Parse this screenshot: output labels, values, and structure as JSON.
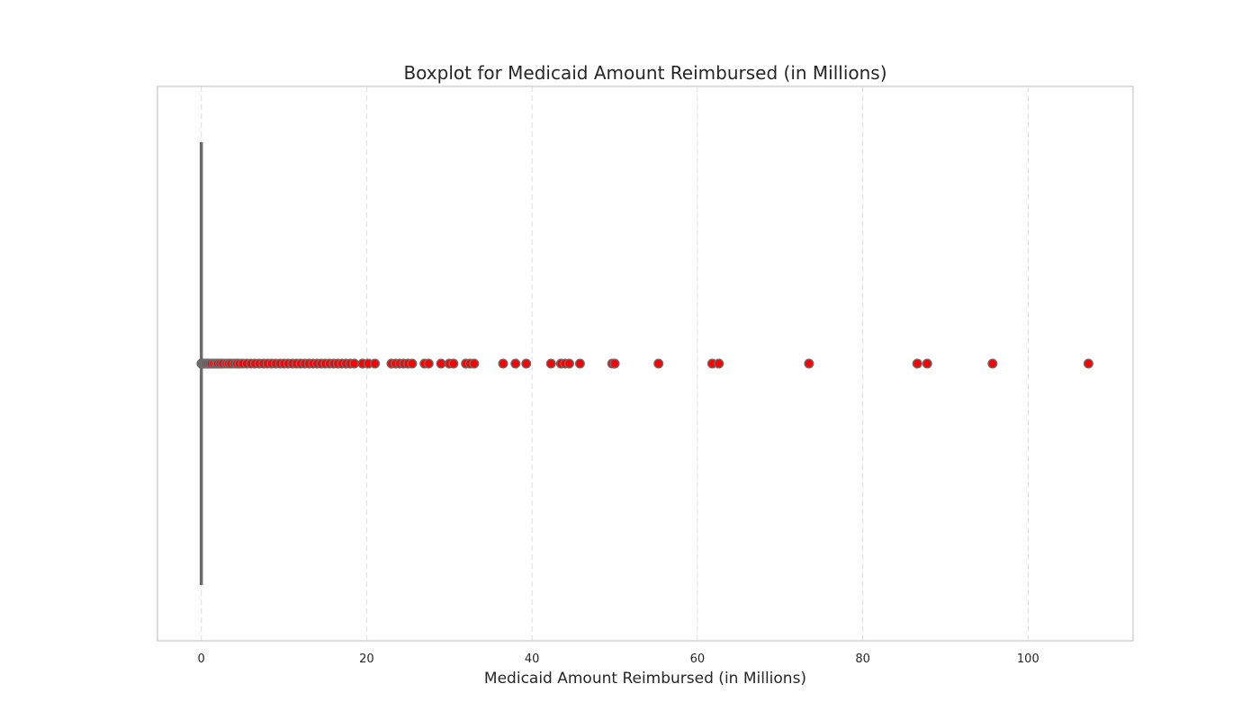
{
  "chart_data": {
    "type": "boxplot",
    "title": "Boxplot for Medicaid Amount Reimbursed (in Millions)",
    "xlabel": "Medicaid Amount Reimbursed (in Millions)",
    "ylabel": "",
    "orientation": "horizontal",
    "xlim": [
      -5.3,
      112.7
    ],
    "xticks": [
      0,
      20,
      40,
      60,
      80,
      100
    ],
    "xtick_labels": [
      "0",
      "20",
      "40",
      "60",
      "80",
      "100"
    ],
    "grid": "x-dashed",
    "box": {
      "q1": 0.0,
      "median": 0.0,
      "q3": 0.0,
      "whisker_low": 0.0,
      "whisker_high": 0.0
    },
    "outliers": [
      0.02,
      0.05,
      0.1,
      0.15,
      0.2,
      0.3,
      0.4,
      0.5,
      0.6,
      0.8,
      1.0,
      1.2,
      1.5,
      1.8,
      2.0,
      2.3,
      2.6,
      3.0,
      3.3,
      3.6,
      4.0,
      4.3,
      4.6,
      5.0,
      5.5,
      6.0,
      6.5,
      7.0,
      7.5,
      8.0,
      8.5,
      9.0,
      9.5,
      10.0,
      10.5,
      11.0,
      11.5,
      12.0,
      12.5,
      13.0,
      13.5,
      14.0,
      14.5,
      15.0,
      15.5,
      16.0,
      16.5,
      17.0,
      17.5,
      18.0,
      18.5,
      19.5,
      20.2,
      21.0,
      23.0,
      23.5,
      24.0,
      24.5,
      25.0,
      25.5,
      27.0,
      27.5,
      29.0,
      30.0,
      30.5,
      32.0,
      32.5,
      33.0,
      36.5,
      38.0,
      39.3,
      42.3,
      43.5,
      44.0,
      44.5,
      45.8,
      49.7,
      50.0,
      55.3,
      61.8,
      62.6,
      73.5,
      86.6,
      87.8,
      95.7,
      107.3
    ],
    "outlier_color": "#ff0000",
    "outlier_edge_color": "#6b6b6b",
    "box_color": "#6b6b6b"
  }
}
